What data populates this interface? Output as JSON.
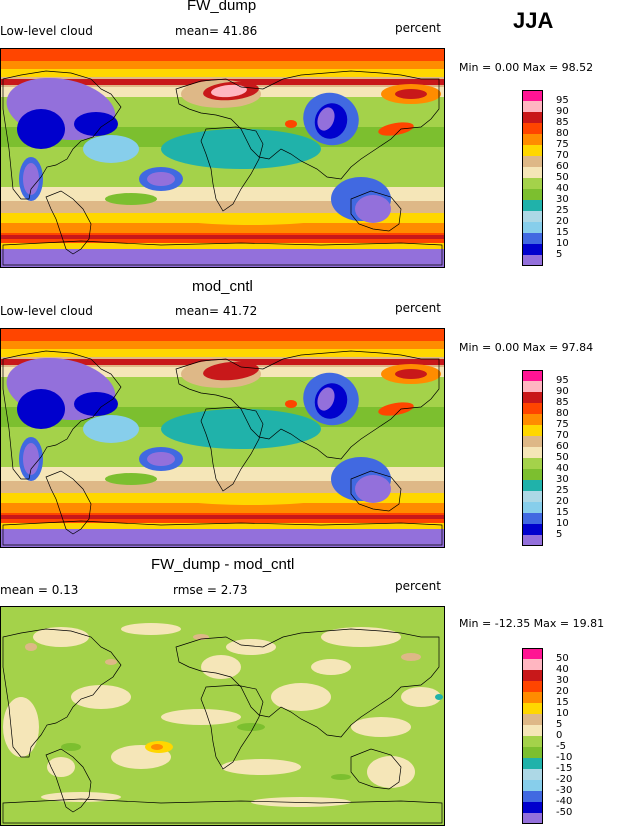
{
  "season": "JJA",
  "panels": [
    {
      "title": "FW_dump",
      "left_label": "Low-level cloud",
      "mid_label": "mean=  41.86",
      "right_label": "percent",
      "minmax": "Min =   0.00 Max =  98.52",
      "colorbar": {
        "labels": [
          "95",
          "90",
          "85",
          "80",
          "75",
          "70",
          "60",
          "50",
          "40",
          "30",
          "25",
          "20",
          "15",
          "10",
          "5"
        ],
        "colors": [
          "#ff1493",
          "#ffb6c1",
          "#c8181a",
          "#ff4500",
          "#ff8c00",
          "#ffd700",
          "#deb887",
          "#f5e6b8",
          "#a4d24a",
          "#7cbf2f",
          "#20b2aa",
          "#add8e6",
          "#87ceeb",
          "#4169e1",
          "#0000cd",
          "#9370db"
        ]
      },
      "map_style": "cloud_fw"
    },
    {
      "title": "mod_cntl",
      "left_label": "Low-level cloud",
      "mid_label": "mean=  41.72",
      "right_label": "percent",
      "minmax": "Min =   0.00 Max =  97.84",
      "colorbar": {
        "labels": [
          "95",
          "90",
          "85",
          "80",
          "75",
          "70",
          "60",
          "50",
          "40",
          "30",
          "25",
          "20",
          "15",
          "10",
          "5"
        ],
        "colors": [
          "#ff1493",
          "#ffb6c1",
          "#c8181a",
          "#ff4500",
          "#ff8c00",
          "#ffd700",
          "#deb887",
          "#f5e6b8",
          "#a4d24a",
          "#7cbf2f",
          "#20b2aa",
          "#add8e6",
          "#87ceeb",
          "#4169e1",
          "#0000cd",
          "#9370db"
        ]
      },
      "map_style": "cloud_cntl"
    },
    {
      "title": "FW_dump - mod_cntl",
      "left_label": "mean =    0.13",
      "mid_label": "rmse =    2.73",
      "right_label": "percent",
      "minmax": "Min = -12.35 Max =  19.81",
      "colorbar": {
        "labels": [
          "50",
          "40",
          "30",
          "20",
          "15",
          "10",
          "5",
          "0",
          "-5",
          "-10",
          "-15",
          "-20",
          "-30",
          "-40",
          "-50"
        ],
        "colors": [
          "#ff1493",
          "#ffb6c1",
          "#c8181a",
          "#ff4500",
          "#ff8c00",
          "#ffd700",
          "#deb887",
          "#f5e6b8",
          "#a4d24a",
          "#7cbf2f",
          "#20b2aa",
          "#add8e6",
          "#87ceeb",
          "#4169e1",
          "#0000cd",
          "#9370db"
        ]
      },
      "map_style": "diff"
    }
  ]
}
